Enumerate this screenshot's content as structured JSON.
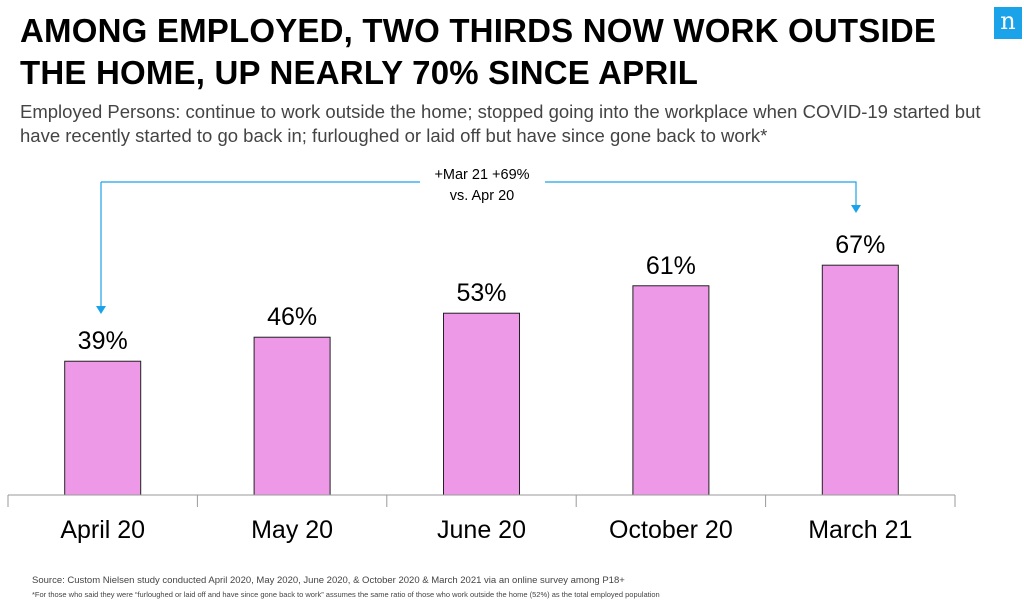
{
  "title": "AMONG EMPLOYED, TWO THIRDS NOW WORK OUTSIDE THE HOME, UP NEARLY 70% SINCE APRIL",
  "subtitle": "Employed Persons: continue to work outside the home; stopped going into the workplace when COVID-19 started but have recently started to go back in; furloughed or laid off but have since gone back to work*",
  "logo_text": "n",
  "annotation": {
    "line1": "+Mar 21 +69%",
    "line2": "vs. Apr 20"
  },
  "chart_data": {
    "type": "bar",
    "categories": [
      "April 20",
      "May 20",
      "June 20",
      "October 20",
      "March 21"
    ],
    "values": [
      39,
      46,
      53,
      61,
      67
    ],
    "value_labels": [
      "39%",
      "46%",
      "53%",
      "61%",
      "67%"
    ],
    "title": "",
    "xlabel": "",
    "ylabel": "",
    "ylim": [
      0,
      100
    ],
    "grid": false,
    "bar_color": "#ee99e8",
    "bar_border": "#222222",
    "arrow_color": "#1aa3e8"
  },
  "source": "Source: Custom Nielsen study conducted April 2020, May 2020, June 2020, & October 2020 & March 2021 via an online survey among P18+",
  "footnote": "*For those who said they were “furloughed or laid off and have since gone back  to work” assumes the same ratio of those who work outside the home (52%) as the total employed population"
}
